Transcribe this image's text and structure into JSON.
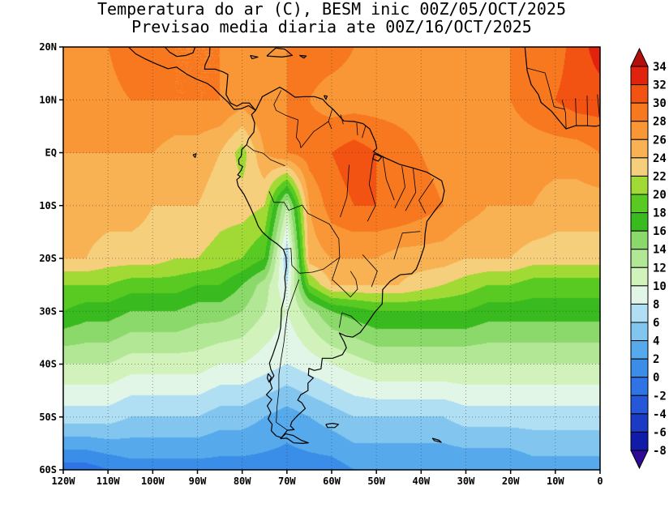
{
  "title": {
    "line1": "Temperatura do ar (C), BESM inic 00Z/05/OCT/2025",
    "line2": "Previsao media diaria ate 00Z/16/OCT/2025"
  },
  "axes": {
    "lat_labels": [
      "20N",
      "10N",
      "EQ",
      "10S",
      "20S",
      "30S",
      "40S",
      "50S",
      "60S"
    ],
    "lon_labels": [
      "120W",
      "110W",
      "100W",
      "90W",
      "80W",
      "70W",
      "60W",
      "50W",
      "40W",
      "30W",
      "20W",
      "10W",
      "0"
    ]
  },
  "colorbar": {
    "tick_labels": [
      "34",
      "32",
      "30",
      "28",
      "26",
      "24",
      "22",
      "20",
      "18",
      "16",
      "14",
      "12",
      "10",
      "8",
      "6",
      "4",
      "2",
      "0",
      "-2",
      "-4",
      "-6",
      "-8"
    ],
    "levels_low_to_high": [
      -8,
      -6,
      -4,
      -2,
      0,
      2,
      4,
      6,
      8,
      10,
      12,
      14,
      16,
      18,
      20,
      22,
      24,
      26,
      28,
      30,
      32,
      34
    ],
    "colors_low_to_high": [
      "#2e0a96",
      "#101ca8",
      "#1b3bc4",
      "#2458d8",
      "#2f74e4",
      "#3a8ee8",
      "#56aaec",
      "#82c6f0",
      "#b0def2",
      "#e2f6e8",
      "#d2f2bc",
      "#b2e795",
      "#8bd96b",
      "#39bb20",
      "#58ca22",
      "#a2da35",
      "#f6cf7c",
      "#f8b254",
      "#f99737",
      "#f87820",
      "#f25212",
      "#e1230e",
      "#b40f0c"
    ]
  },
  "chart_data": {
    "type": "heatmap",
    "title": "Temperatura do ar (C), BESM inic 00Z/05/OCT/2025 - Previsao media diaria ate 00Z/16/OCT/2025",
    "units": "C",
    "lon_range": [
      -120,
      0
    ],
    "lat_range": [
      -60,
      20
    ],
    "lon": [
      -120,
      -115,
      -110,
      -105,
      -100,
      -95,
      -90,
      -85,
      -80,
      -75,
      -70,
      -65,
      -60,
      -55,
      -50,
      -45,
      -40,
      -35,
      -30,
      -25,
      -20,
      -15,
      -10,
      -5,
      0
    ],
    "lat": [
      20,
      10,
      0,
      -10,
      -20,
      -25,
      -30,
      -40,
      -50,
      -60
    ],
    "temperature_c": [
      [
        27,
        27,
        28,
        30,
        29,
        28,
        28,
        28,
        27,
        27,
        28,
        29,
        29,
        28,
        28,
        27,
        27,
        27,
        27,
        27,
        28,
        29,
        29,
        31,
        33
      ],
      [
        27,
        27,
        27,
        28,
        28,
        28,
        28,
        28,
        27,
        28,
        28,
        28,
        27,
        27,
        27,
        27,
        27,
        27,
        27,
        27,
        28,
        29,
        30,
        31,
        31
      ],
      [
        26,
        26,
        26,
        26,
        26,
        25,
        25,
        24,
        21,
        26,
        28,
        29,
        30,
        31,
        30,
        29,
        28,
        27,
        27,
        27,
        27,
        27,
        27,
        27,
        28
      ],
      [
        26,
        25,
        25,
        25,
        24,
        24,
        24,
        23,
        23,
        22,
        12,
        26,
        29,
        30,
        30,
        30,
        29,
        28,
        27,
        26,
        26,
        26,
        25,
        25,
        25
      ],
      [
        24,
        24,
        23,
        23,
        23,
        22,
        22,
        21,
        20,
        18,
        6,
        25,
        26,
        26,
        26,
        25,
        25,
        25,
        24,
        24,
        24,
        23,
        23,
        23,
        23
      ],
      [
        20,
        20,
        20,
        19,
        19,
        19,
        18,
        18,
        16,
        13,
        8,
        20,
        24,
        24,
        24,
        24,
        23,
        22,
        21,
        20,
        20,
        19,
        19,
        19,
        19
      ],
      [
        18,
        17,
        17,
        16,
        16,
        16,
        15,
        15,
        14,
        12,
        10,
        13,
        16,
        17,
        18,
        18,
        18,
        18,
        18,
        17,
        17,
        17,
        17,
        17,
        17
      ],
      [
        12,
        12,
        12,
        11,
        11,
        11,
        11,
        10,
        10,
        9,
        8,
        9,
        10,
        11,
        12,
        12,
        12,
        12,
        12,
        12,
        12,
        12,
        12,
        12,
        12
      ],
      [
        7,
        7,
        7,
        6,
        6,
        6,
        6,
        5,
        5,
        4,
        3,
        4,
        5,
        6,
        6,
        6,
        6,
        6,
        7,
        7,
        7,
        7,
        7,
        7,
        7
      ],
      [
        -1,
        -1,
        0,
        1,
        1,
        1,
        1,
        1,
        1,
        1,
        1,
        1,
        1,
        2,
        2,
        2,
        2,
        2,
        2,
        2,
        2,
        3,
        3,
        3,
        3
      ]
    ]
  }
}
